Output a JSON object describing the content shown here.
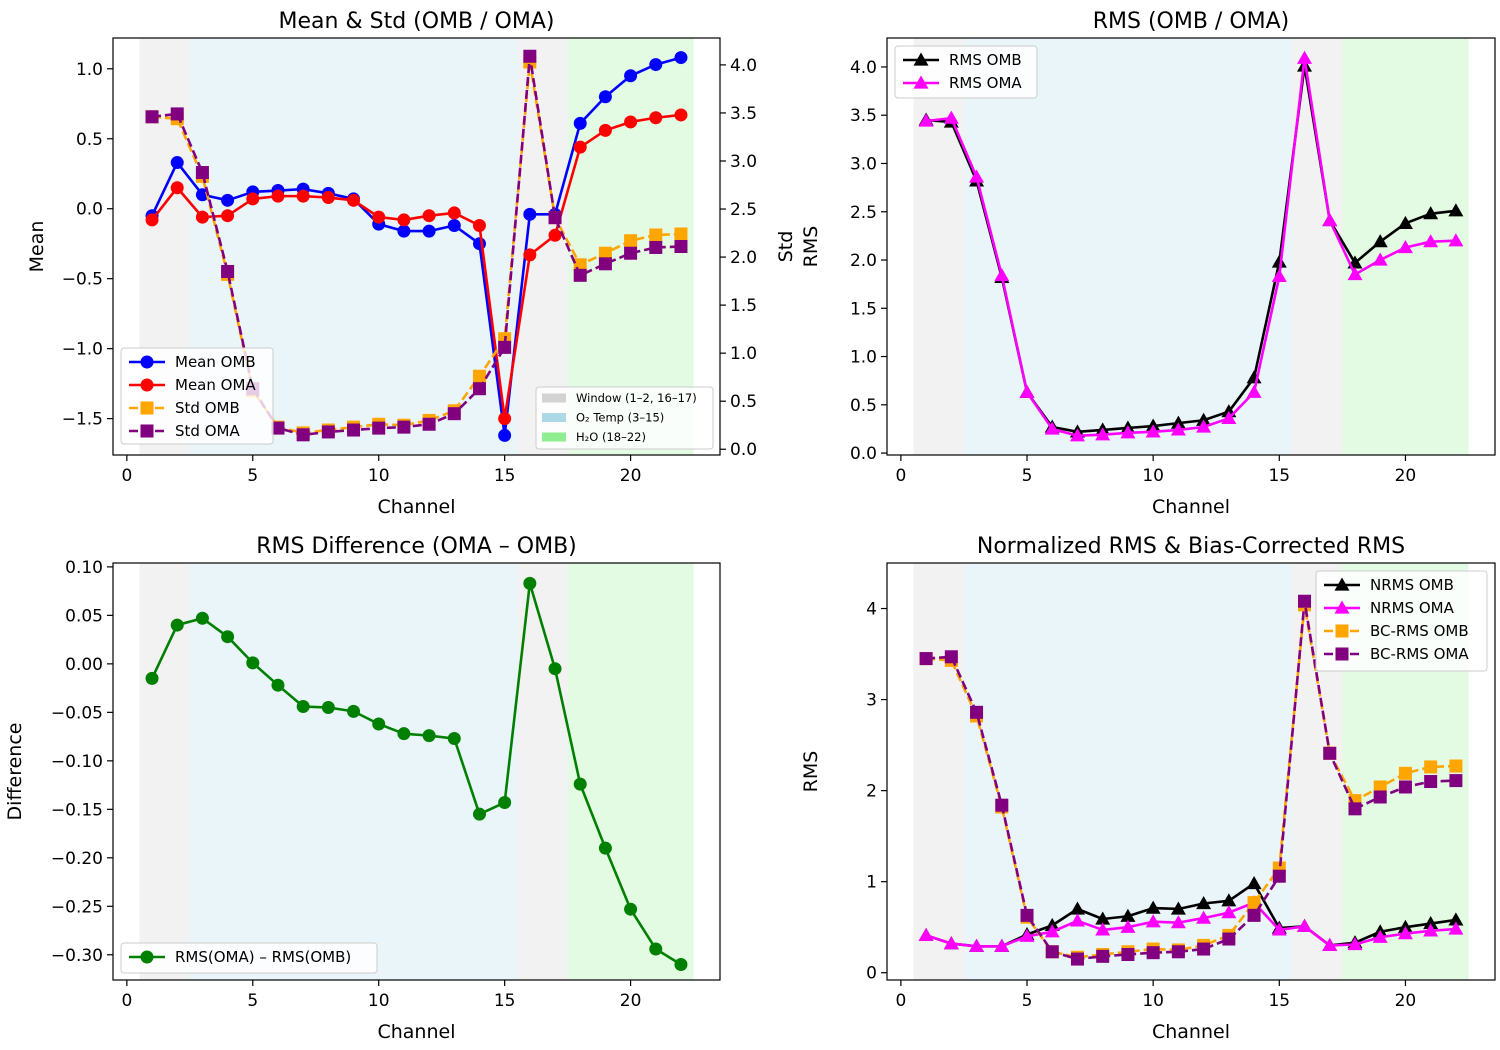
{
  "chart_data": [
    {
      "type": "line",
      "title": "Mean & Std (OMB / OMA)",
      "xlabel": "Channel",
      "ylabel": "Mean",
      "y2label": "Std",
      "xlim": [
        -0.55,
        23.55
      ],
      "ylim": [
        -1.76,
        1.22
      ],
      "y2lim": [
        -0.06,
        4.28
      ],
      "xticks": [
        0,
        5,
        10,
        15,
        20
      ],
      "yticks": [
        1.0,
        0.5,
        0.0,
        -0.5,
        -1.0,
        -1.5
      ],
      "y2ticks": [
        4.0,
        3.5,
        3.0,
        2.5,
        2.0,
        1.5,
        1.0,
        0.5,
        0.0
      ],
      "x": [
        1,
        2,
        3,
        4,
        5,
        6,
        7,
        8,
        9,
        10,
        11,
        12,
        13,
        14,
        15,
        16,
        17,
        18,
        19,
        20,
        21,
        22
      ],
      "series": [
        {
          "name": "Mean OMB",
          "axis": "left",
          "color": "#0000ff",
          "marker": "circle",
          "dash": false,
          "values": [
            -0.05,
            0.33,
            0.1,
            0.06,
            0.12,
            0.13,
            0.14,
            0.11,
            0.07,
            -0.11,
            -0.16,
            -0.16,
            -0.12,
            -0.25,
            -1.62,
            -0.04,
            -0.04,
            0.61,
            0.8,
            0.95,
            1.03,
            1.08
          ]
        },
        {
          "name": "Mean OMA",
          "axis": "left",
          "color": "#ff0000",
          "marker": "circle",
          "dash": false,
          "values": [
            -0.08,
            0.15,
            -0.06,
            -0.05,
            0.07,
            0.09,
            0.09,
            0.08,
            0.06,
            -0.06,
            -0.08,
            -0.05,
            -0.03,
            -0.12,
            -1.5,
            -0.33,
            -0.19,
            0.44,
            0.56,
            0.62,
            0.65,
            0.67
          ]
        },
        {
          "name": "Std OMB",
          "axis": "right",
          "color": "#ffa500",
          "marker": "square",
          "dash": true,
          "values": [
            3.46,
            3.44,
            2.84,
            1.82,
            0.61,
            0.23,
            0.17,
            0.2,
            0.23,
            0.26,
            0.25,
            0.3,
            0.4,
            0.76,
            1.15,
            4.03,
            2.41,
            1.92,
            2.04,
            2.17,
            2.23,
            2.24
          ]
        },
        {
          "name": "Std OMA",
          "axis": "right",
          "color": "#800080",
          "marker": "square",
          "dash": true,
          "values": [
            3.46,
            3.49,
            2.88,
            1.85,
            0.63,
            0.22,
            0.15,
            0.18,
            0.2,
            0.22,
            0.23,
            0.26,
            0.37,
            0.63,
            1.06,
            4.09,
            2.41,
            1.81,
            1.93,
            2.04,
            2.1,
            2.11
          ]
        }
      ],
      "regions": [
        {
          "name": "Window (1–2, 16–17)",
          "color": "#d3d3d3",
          "opacity": 0.3,
          "spans": [
            [
              0.5,
              2.5
            ],
            [
              15.5,
              17.5
            ]
          ]
        },
        {
          "name": "O₂ Temp (3–15)",
          "color": "#add8e6",
          "opacity": 0.25,
          "spans": [
            [
              2.5,
              15.5
            ]
          ]
        },
        {
          "name": "H₂O (18–22)",
          "color": "#90ee90",
          "opacity": 0.25,
          "spans": [
            [
              17.5,
              22.5
            ]
          ]
        }
      ],
      "legend": "lower-left",
      "region_legend": "lower-right",
      "grid": false
    },
    {
      "type": "line",
      "title": "RMS (OMB / OMA)",
      "xlabel": "Channel",
      "ylabel": "RMS",
      "xlim": [
        -0.55,
        23.55
      ],
      "ylim": [
        -0.02,
        4.3
      ],
      "xticks": [
        0,
        5,
        10,
        15,
        20
      ],
      "yticks": [
        4.0,
        3.5,
        3.0,
        2.5,
        2.0,
        1.5,
        1.0,
        0.5,
        0.0
      ],
      "yticklabels": [
        "4.0",
        "3.5",
        "3.0",
        "2.5",
        "2.0",
        "1.5",
        "1.0",
        "0.5",
        "0.0"
      ],
      "x": [
        1,
        2,
        3,
        4,
        5,
        6,
        7,
        8,
        9,
        10,
        11,
        12,
        13,
        14,
        15,
        16,
        17,
        18,
        19,
        20,
        21,
        22
      ],
      "series": [
        {
          "name": "RMS OMB",
          "color": "#000000",
          "marker": "triangle",
          "dash": false,
          "values": [
            3.45,
            3.43,
            2.82,
            1.82,
            0.63,
            0.27,
            0.22,
            0.24,
            0.26,
            0.28,
            0.31,
            0.34,
            0.43,
            0.78,
            1.98,
            4.01,
            2.41,
            1.97,
            2.19,
            2.38,
            2.48,
            2.51
          ]
        },
        {
          "name": "RMS OMA",
          "color": "#ff00ff",
          "marker": "triangle",
          "dash": false,
          "values": [
            3.44,
            3.47,
            2.86,
            1.84,
            0.63,
            0.25,
            0.18,
            0.19,
            0.21,
            0.22,
            0.24,
            0.27,
            0.36,
            0.63,
            1.83,
            4.09,
            2.41,
            1.85,
            2.0,
            2.13,
            2.19,
            2.2
          ]
        }
      ],
      "regions": [
        {
          "color": "#d3d3d3",
          "opacity": 0.3,
          "spans": [
            [
              0.5,
              2.5
            ],
            [
              15.5,
              17.5
            ]
          ]
        },
        {
          "color": "#add8e6",
          "opacity": 0.25,
          "spans": [
            [
              2.5,
              15.5
            ]
          ]
        },
        {
          "color": "#90ee90",
          "opacity": 0.25,
          "spans": [
            [
              17.5,
              22.5
            ]
          ]
        }
      ],
      "legend": "upper-left",
      "grid": false
    },
    {
      "type": "line",
      "title": "RMS Difference (OMA – OMB)",
      "xlabel": "Channel",
      "ylabel": "Difference",
      "xlim": [
        -0.55,
        23.55
      ],
      "ylim": [
        -0.326,
        0.104
      ],
      "xticks": [
        0,
        5,
        10,
        15,
        20
      ],
      "yticks": [
        0.1,
        0.05,
        0.0,
        -0.05,
        -0.1,
        -0.15,
        -0.2,
        -0.25,
        -0.3
      ],
      "yticklabels": [
        "0.10",
        "0.05",
        "0.00",
        "−0.05",
        "−0.10",
        "−0.15",
        "−0.20",
        "−0.25",
        "−0.30"
      ],
      "x": [
        1,
        2,
        3,
        4,
        5,
        6,
        7,
        8,
        9,
        10,
        11,
        12,
        13,
        14,
        15,
        16,
        17,
        18,
        19,
        20,
        21,
        22
      ],
      "series": [
        {
          "name": "RMS(OMA) – RMS(OMB)",
          "color": "#008000",
          "marker": "circle",
          "dash": false,
          "values": [
            -0.015,
            0.04,
            0.047,
            0.028,
            0.001,
            -0.022,
            -0.044,
            -0.045,
            -0.049,
            -0.062,
            -0.072,
            -0.074,
            -0.077,
            -0.155,
            -0.143,
            0.083,
            -0.005,
            -0.124,
            -0.19,
            -0.253,
            -0.294,
            -0.31
          ]
        }
      ],
      "regions": [
        {
          "color": "#d3d3d3",
          "opacity": 0.3,
          "spans": [
            [
              0.5,
              2.5
            ],
            [
              15.5,
              17.5
            ]
          ]
        },
        {
          "color": "#add8e6",
          "opacity": 0.25,
          "spans": [
            [
              2.5,
              15.5
            ]
          ]
        },
        {
          "color": "#90ee90",
          "opacity": 0.25,
          "spans": [
            [
              17.5,
              22.5
            ]
          ]
        }
      ],
      "legend": "lower-left",
      "grid": false
    },
    {
      "type": "line",
      "title": "Normalized RMS & Bias-Corrected RMS",
      "xlabel": "Channel",
      "ylabel": "RMS",
      "xlim": [
        -0.55,
        23.55
      ],
      "ylim": [
        -0.08,
        4.5
      ],
      "xticks": [
        0,
        5,
        10,
        15,
        20
      ],
      "yticks": [
        4,
        3,
        2,
        1,
        0
      ],
      "yticklabels": [
        "4",
        "3",
        "2",
        "1",
        "0"
      ],
      "x": [
        1,
        2,
        3,
        4,
        5,
        6,
        7,
        8,
        9,
        10,
        11,
        12,
        13,
        14,
        15,
        16,
        17,
        18,
        19,
        20,
        21,
        22
      ],
      "series": [
        {
          "name": "NRMS OMB",
          "color": "#000000",
          "marker": "triangle",
          "dash": false,
          "values": [
            0.41,
            0.32,
            0.29,
            0.29,
            0.42,
            0.52,
            0.7,
            0.59,
            0.62,
            0.71,
            0.7,
            0.76,
            0.79,
            0.98,
            0.49,
            0.51,
            0.3,
            0.33,
            0.45,
            0.5,
            0.54,
            0.58
          ]
        },
        {
          "name": "NRMS OMA",
          "color": "#ff00ff",
          "marker": "triangle",
          "dash": false,
          "values": [
            0.41,
            0.32,
            0.29,
            0.29,
            0.4,
            0.45,
            0.57,
            0.47,
            0.5,
            0.56,
            0.55,
            0.6,
            0.66,
            0.77,
            0.47,
            0.51,
            0.3,
            0.31,
            0.39,
            0.43,
            0.46,
            0.48
          ]
        },
        {
          "name": "BC-RMS OMB",
          "color": "#ffa500",
          "marker": "square",
          "dash": true,
          "values": [
            3.45,
            3.43,
            2.82,
            1.82,
            0.61,
            0.23,
            0.17,
            0.2,
            0.23,
            0.26,
            0.25,
            0.3,
            0.41,
            0.77,
            1.15,
            4.04,
            2.41,
            1.89,
            2.04,
            2.19,
            2.26,
            2.27
          ]
        },
        {
          "name": "BC-RMS OMA",
          "color": "#800080",
          "marker": "square",
          "dash": true,
          "values": [
            3.45,
            3.47,
            2.86,
            1.84,
            0.63,
            0.23,
            0.15,
            0.18,
            0.2,
            0.22,
            0.23,
            0.26,
            0.37,
            0.63,
            1.06,
            4.08,
            2.41,
            1.8,
            1.93,
            2.04,
            2.1,
            2.11
          ]
        }
      ],
      "regions": [
        {
          "color": "#d3d3d3",
          "opacity": 0.3,
          "spans": [
            [
              0.5,
              2.5
            ],
            [
              15.5,
              17.5
            ]
          ]
        },
        {
          "color": "#add8e6",
          "opacity": 0.25,
          "spans": [
            [
              2.5,
              15.5
            ]
          ]
        },
        {
          "color": "#90ee90",
          "opacity": 0.25,
          "spans": [
            [
              17.5,
              22.5
            ]
          ]
        }
      ],
      "legend": "upper-right",
      "grid": false
    }
  ]
}
